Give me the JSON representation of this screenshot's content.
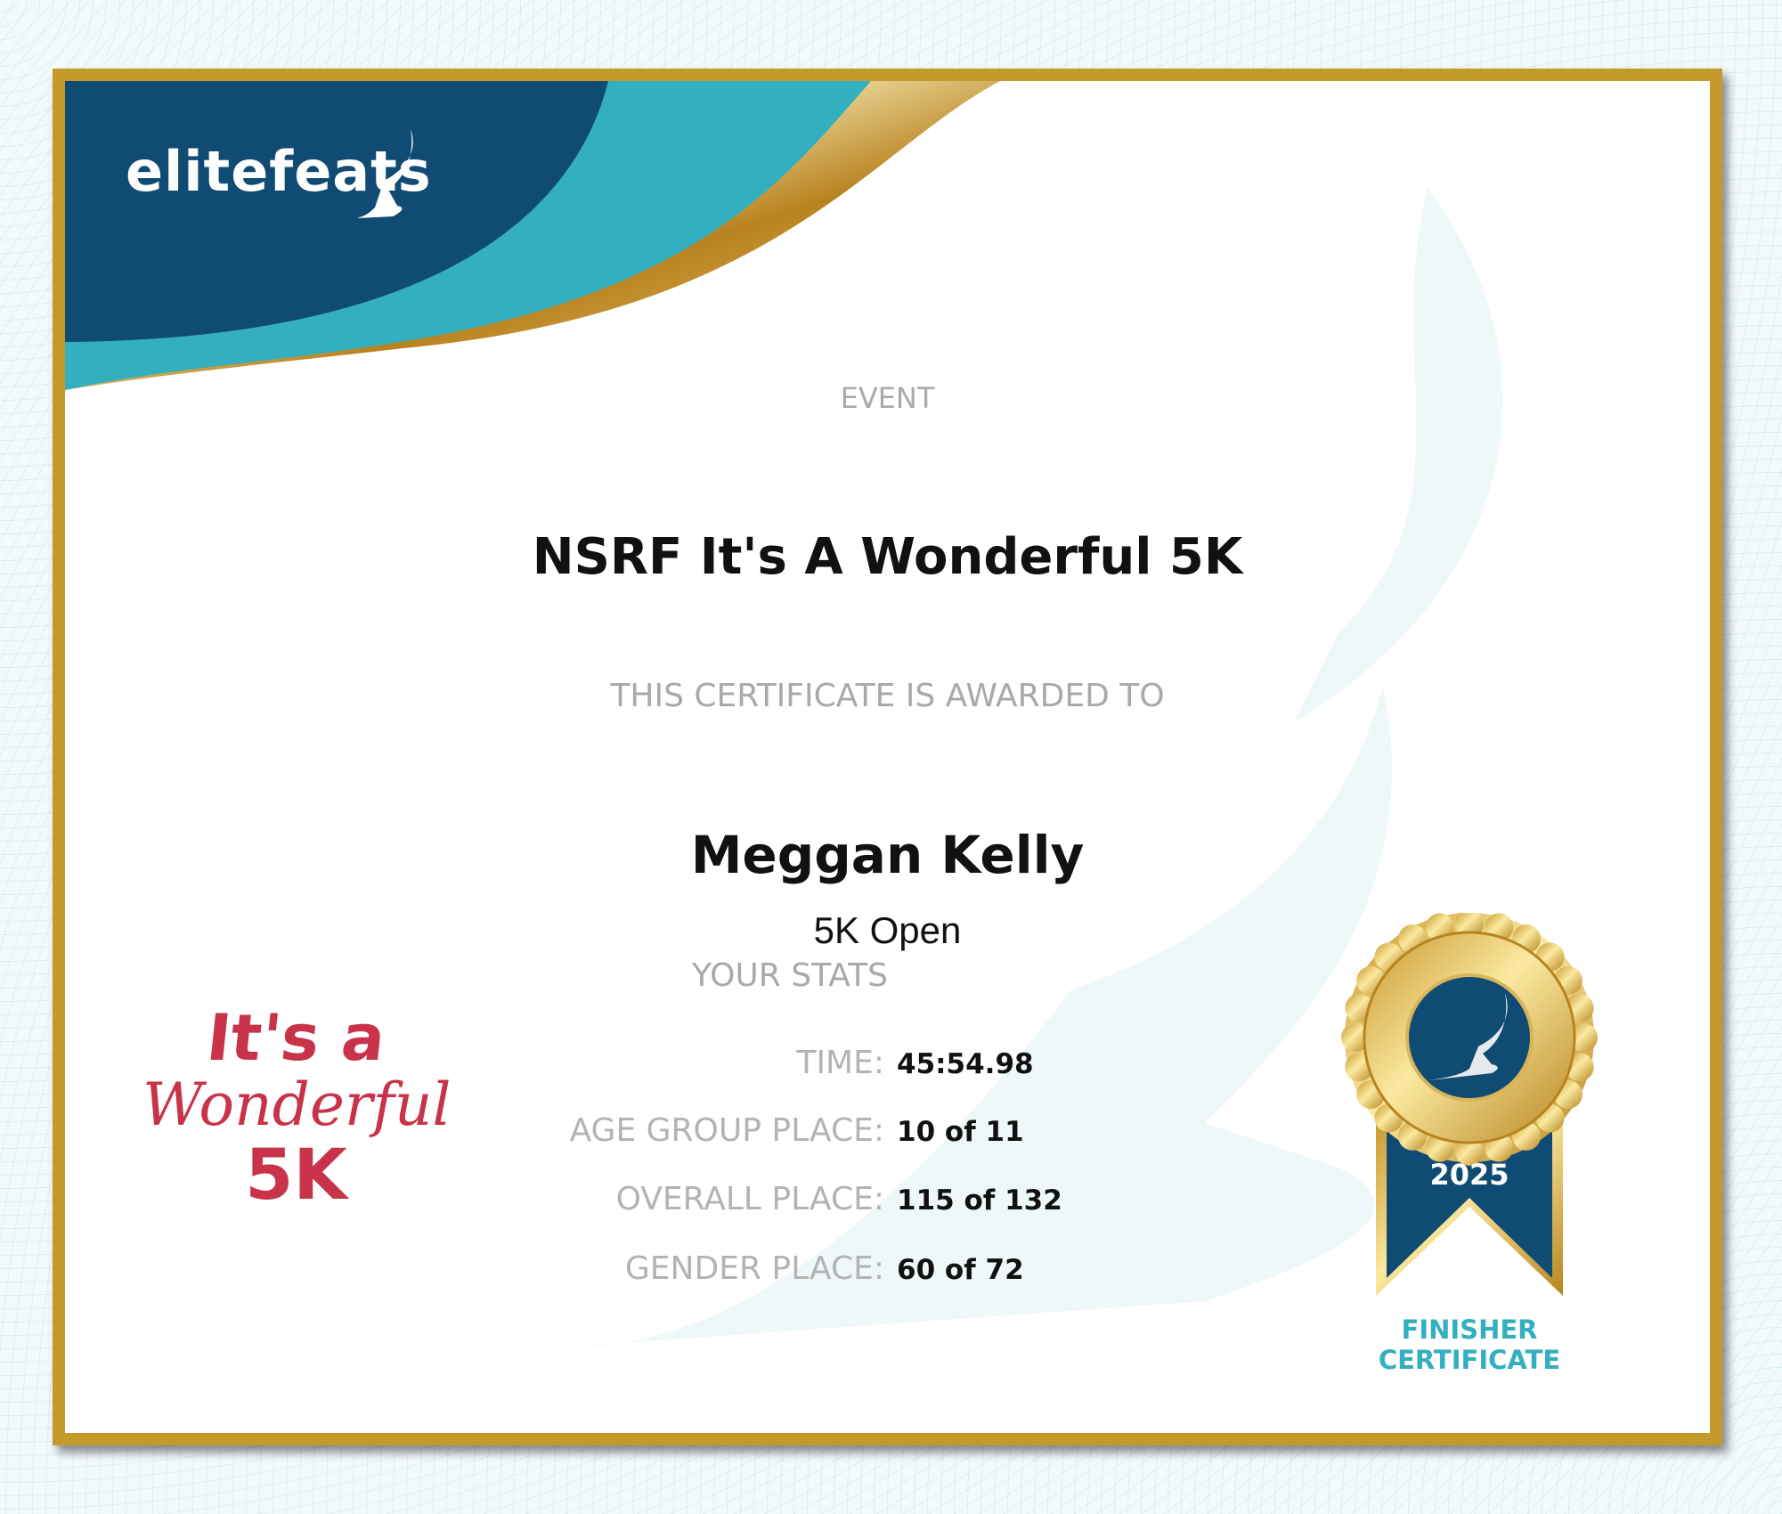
{
  "brand": {
    "logo_text": "elitefeats"
  },
  "event": {
    "label": "EVENT",
    "name": "NSRF It's A Wonderful 5K"
  },
  "award": {
    "label": "THIS CERTIFICATE IS AWARDED TO",
    "recipient": "Meggan Kelly",
    "division": "5K Open"
  },
  "stats": {
    "heading": "YOUR STATS",
    "rows": [
      {
        "label": "TIME:",
        "value": "45:54.98"
      },
      {
        "label": "AGE GROUP PLACE:",
        "value": "10 of 11"
      },
      {
        "label": "OVERALL PLACE:",
        "value": "115 of 132"
      },
      {
        "label": "GENDER PLACE:",
        "value": "60 of 72"
      }
    ]
  },
  "event_logo": {
    "line1": "It's a",
    "line2": "Wonderful",
    "line3": "5K"
  },
  "medal": {
    "year": "2025",
    "caption_line1": "FINISHER",
    "caption_line2": "CERTIFICATE",
    "icon": "winged-foot-icon"
  },
  "colors": {
    "navy": "#104b73",
    "teal": "#33afbf",
    "gold": "#c49a2c",
    "logo_red": "#c8334a"
  }
}
